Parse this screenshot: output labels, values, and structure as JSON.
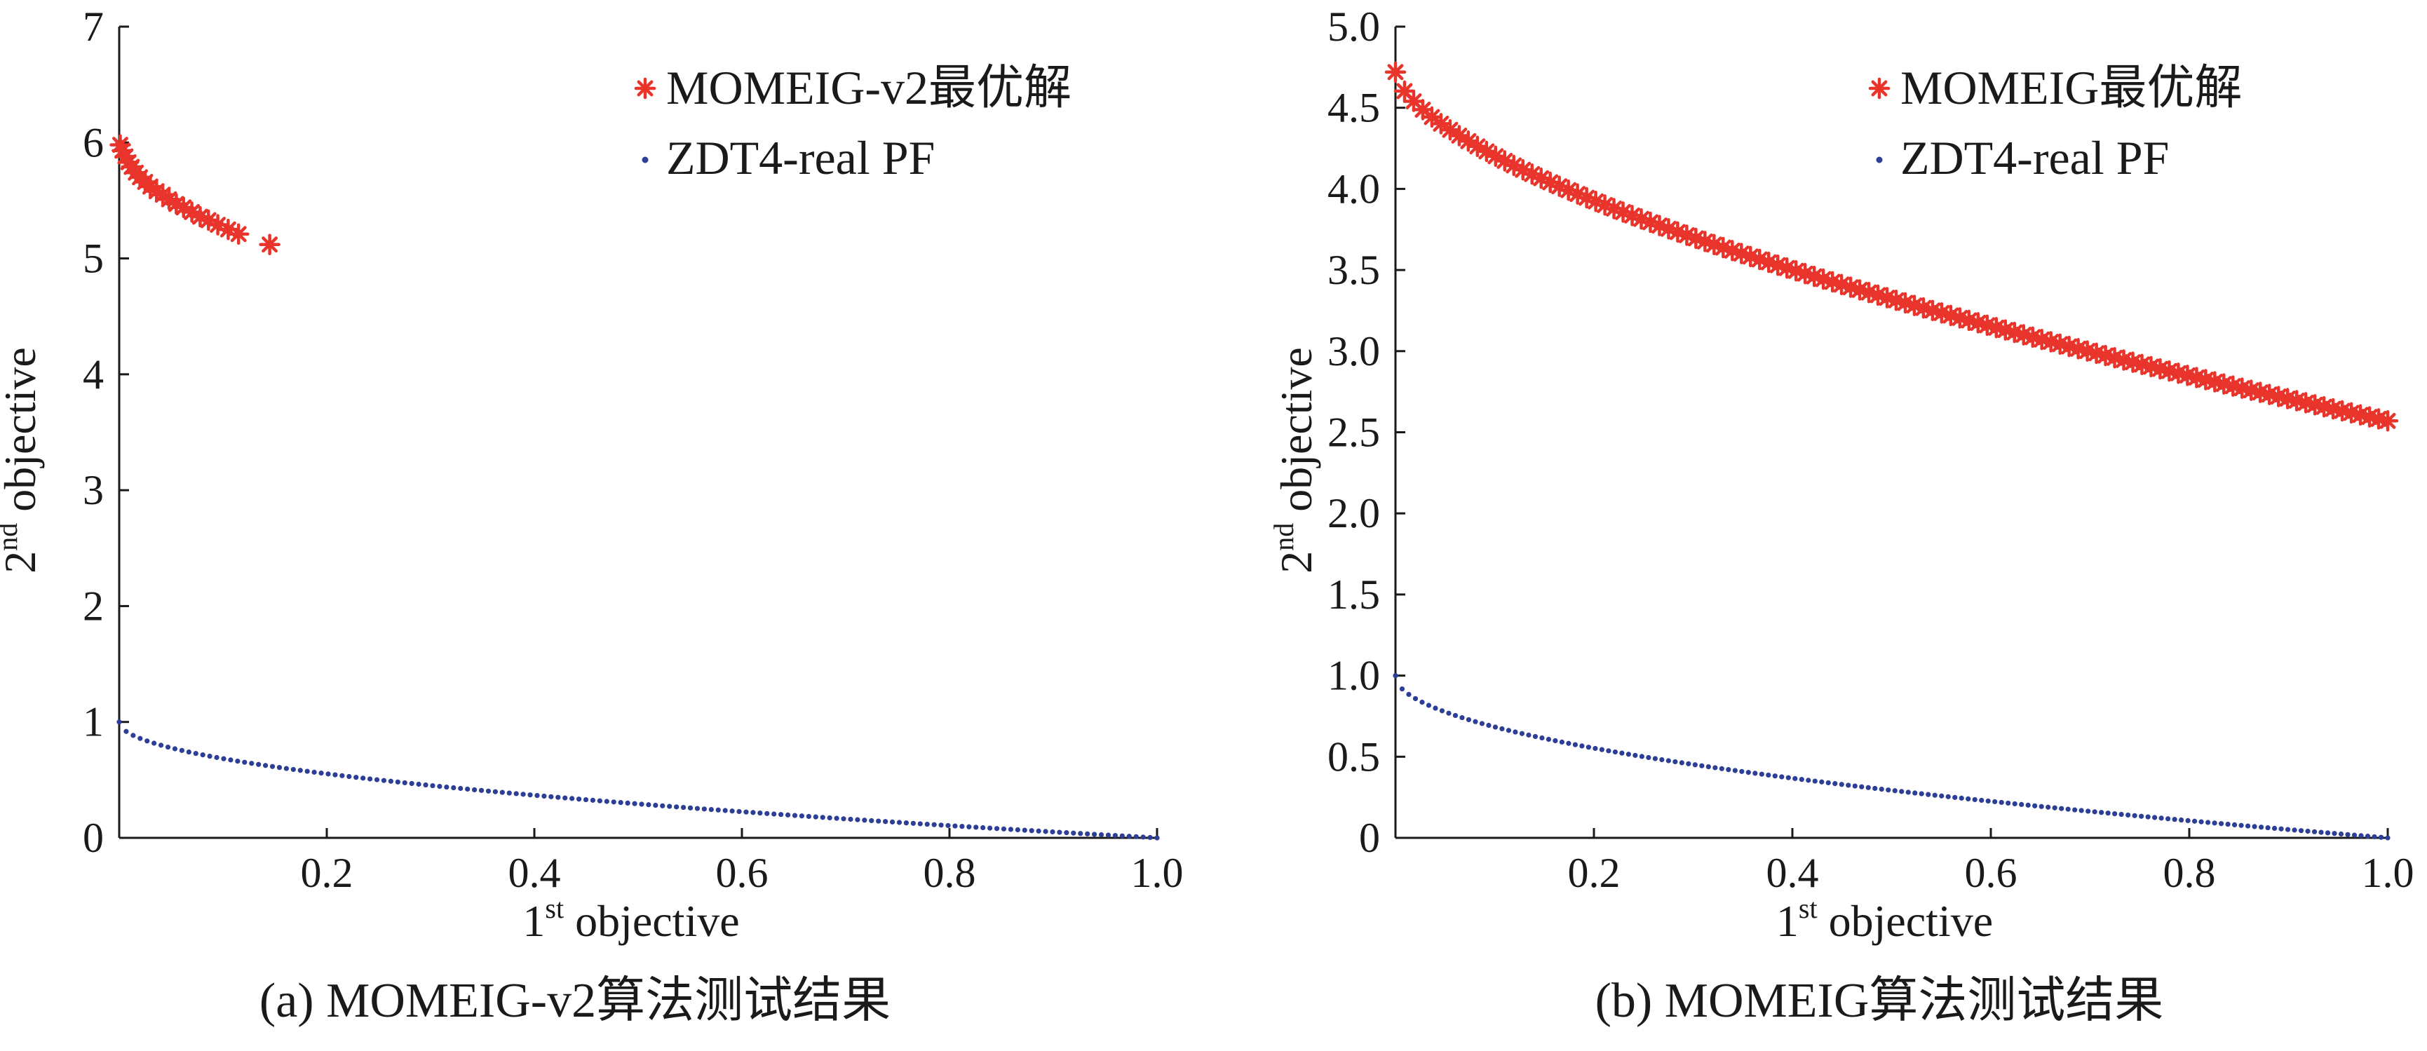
{
  "chart_data": [
    {
      "type": "scatter",
      "caption": "(a) MOMEIG-v2算法测试结果",
      "xlabel": {
        "num": "1",
        "sup": "st",
        "text": " objective"
      },
      "ylabel": {
        "num": "2",
        "sup": "nd",
        "text": " objective"
      },
      "xlim": [
        0,
        1.0
      ],
      "ylim": [
        0,
        7
      ],
      "xticks": [
        {
          "v": 0.2,
          "label": "0.2"
        },
        {
          "v": 0.4,
          "label": "0.4"
        },
        {
          "v": 0.6,
          "label": "0.6"
        },
        {
          "v": 0.8,
          "label": "0.8"
        },
        {
          "v": 1.0,
          "label": "1.0"
        }
      ],
      "yticks": [
        {
          "v": 0,
          "label": "0"
        },
        {
          "v": 1,
          "label": "1"
        },
        {
          "v": 2,
          "label": "2"
        },
        {
          "v": 3,
          "label": "3"
        },
        {
          "v": 4,
          "label": "4"
        },
        {
          "v": 5,
          "label": "5"
        },
        {
          "v": 6,
          "label": "6"
        },
        {
          "v": 7,
          "label": "7"
        }
      ],
      "legend_position": "top-right",
      "series": [
        {
          "name": "MOMEIG-v2最优解",
          "marker": "asterisk",
          "color": "#e8342b",
          "points": [
            [
              0.001,
              5.98
            ],
            [
              0.003,
              5.93
            ],
            [
              0.006,
              5.88
            ],
            [
              0.009,
              5.83
            ],
            [
              0.012,
              5.79
            ],
            [
              0.016,
              5.74
            ],
            [
              0.02,
              5.7
            ],
            [
              0.025,
              5.66
            ],
            [
              0.03,
              5.62
            ],
            [
              0.036,
              5.58
            ],
            [
              0.042,
              5.55
            ],
            [
              0.048,
              5.51
            ],
            [
              0.055,
              5.47
            ],
            [
              0.062,
              5.44
            ],
            [
              0.07,
              5.4
            ],
            [
              0.078,
              5.36
            ],
            [
              0.086,
              5.33
            ],
            [
              0.095,
              5.29
            ],
            [
              0.105,
              5.25
            ],
            [
              0.115,
              5.21
            ],
            [
              0.145,
              5.12
            ]
          ]
        },
        {
          "name": "ZDT4-real PF",
          "marker": "dot",
          "color": "#2c3e96",
          "curve": "1-sqrt(x)",
          "n_points": 150
        }
      ]
    },
    {
      "type": "scatter",
      "caption": "(b) MOMEIG算法测试结果",
      "xlabel": {
        "num": "1",
        "sup": "st",
        "text": " objective"
      },
      "ylabel": {
        "num": "2",
        "sup": "nd",
        "text": " objective"
      },
      "xlim": [
        0,
        1.0
      ],
      "ylim": [
        0,
        5.0
      ],
      "xticks": [
        {
          "v": 0.2,
          "label": "0.2"
        },
        {
          "v": 0.4,
          "label": "0.4"
        },
        {
          "v": 0.6,
          "label": "0.6"
        },
        {
          "v": 0.8,
          "label": "0.8"
        },
        {
          "v": 1.0,
          "label": "1.0"
        }
      ],
      "yticks": [
        {
          "v": 0,
          "label": "0"
        },
        {
          "v": 0.5,
          "label": "0.5"
        },
        {
          "v": 1.0,
          "label": "1.0"
        },
        {
          "v": 1.5,
          "label": "1.5"
        },
        {
          "v": 2.0,
          "label": "2.0"
        },
        {
          "v": 2.5,
          "label": "2.5"
        },
        {
          "v": 3.0,
          "label": "3.0"
        },
        {
          "v": 3.5,
          "label": "3.5"
        },
        {
          "v": 4.0,
          "label": "4.0"
        },
        {
          "v": 4.5,
          "label": "4.5"
        },
        {
          "v": 5.0,
          "label": "5.0"
        }
      ],
      "legend_position": "top-right",
      "series": [
        {
          "name": "MOMEIG最优解",
          "marker": "asterisk",
          "color": "#e8342b",
          "curve": "4.72-2.15*x^0.62",
          "n_points": 110
        },
        {
          "name": "ZDT4-real PF",
          "marker": "dot",
          "color": "#2c3e96",
          "curve": "1-sqrt(x)",
          "n_points": 150
        }
      ]
    }
  ]
}
